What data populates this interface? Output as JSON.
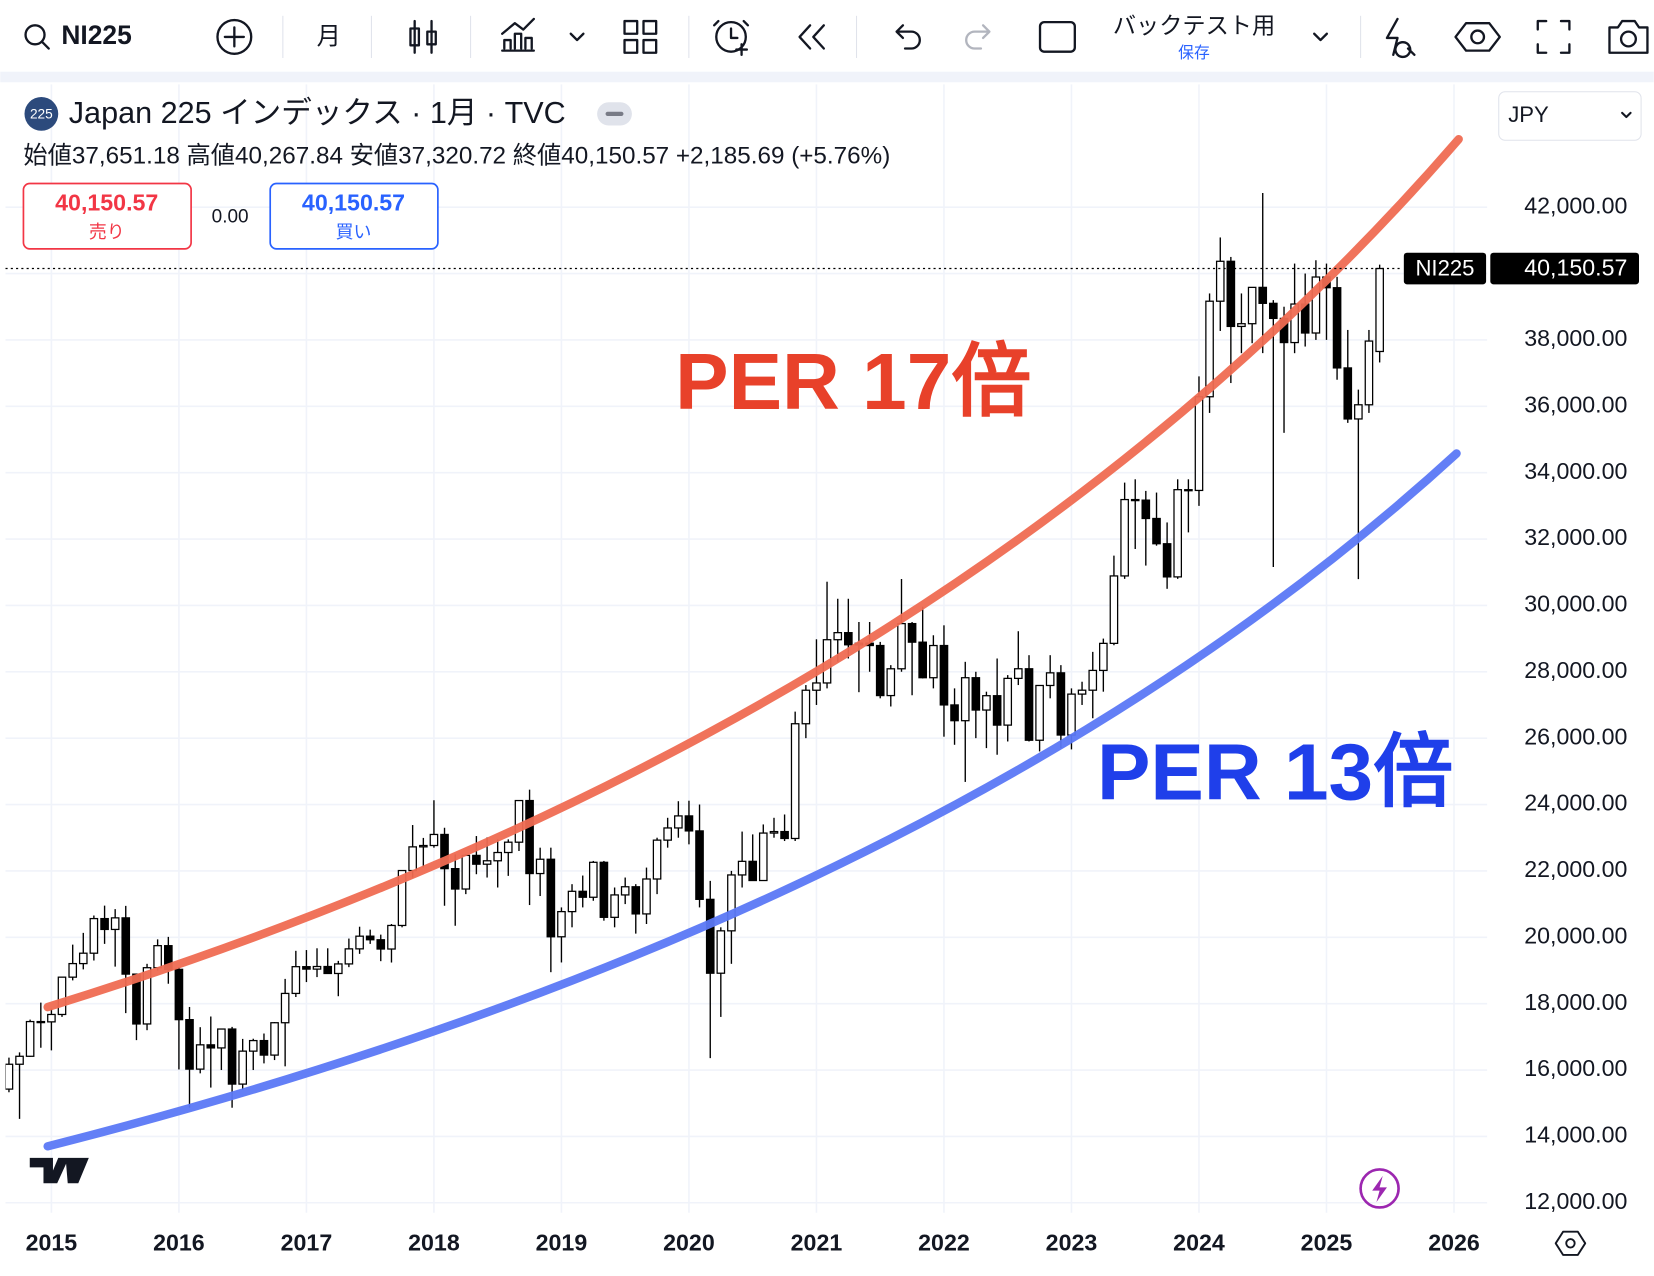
{
  "toolbar": {
    "symbol": "NI225",
    "interval": "月",
    "backtest": "バックテスト用",
    "save": "保存"
  },
  "chart_data": {
    "type": "candlestick",
    "badge": "225",
    "title": "Japan 225 インデックス · 1月 · TVC",
    "legend": "始値37,651.18 高値40,267.84 安値37,320.72 終値40,150.57 +2,185.69 (+5.76%)",
    "trade": {
      "sell_price": "40,150.57",
      "sell": "売り",
      "spread": "0.00",
      "buy_price": "40,150.57",
      "buy": "買い"
    },
    "currency": "JPY",
    "annotations": [
      "PER 17倍",
      "PER 13倍"
    ],
    "up_color": "#ffffff",
    "down_color": "#000000",
    "last_price": {
      "name": "NI225",
      "value": 40150.57,
      "label": "40,150.57"
    },
    "x": [
      2014.667,
      2014.75,
      2014.833,
      2014.917,
      2015,
      2015.083,
      2015.167,
      2015.25,
      2015.333,
      2015.417,
      2015.5,
      2015.583,
      2015.667,
      2015.75,
      2015.833,
      2015.917,
      2016,
      2016.083,
      2016.167,
      2016.25,
      2016.333,
      2016.417,
      2016.5,
      2016.583,
      2016.667,
      2016.75,
      2016.833,
      2016.917,
      2017,
      2017.083,
      2017.167,
      2017.25,
      2017.333,
      2017.417,
      2017.5,
      2017.583,
      2017.667,
      2017.75,
      2017.833,
      2017.917,
      2018,
      2018.083,
      2018.167,
      2018.25,
      2018.333,
      2018.417,
      2018.5,
      2018.583,
      2018.667,
      2018.75,
      2018.833,
      2018.917,
      2019,
      2019.083,
      2019.167,
      2019.25,
      2019.333,
      2019.417,
      2019.5,
      2019.583,
      2019.667,
      2019.75,
      2019.833,
      2019.917,
      2020,
      2020.083,
      2020.167,
      2020.25,
      2020.333,
      2020.417,
      2020.5,
      2020.583,
      2020.667,
      2020.75,
      2020.833,
      2020.917,
      2021,
      2021.083,
      2021.167,
      2021.25,
      2021.333,
      2021.417,
      2021.5,
      2021.583,
      2021.667,
      2021.75,
      2021.833,
      2021.917,
      2022,
      2022.083,
      2022.167,
      2022.25,
      2022.333,
      2022.417,
      2022.5,
      2022.583,
      2022.667,
      2022.75,
      2022.833,
      2022.917,
      2023,
      2023.083,
      2023.167,
      2023.25,
      2023.333,
      2023.417,
      2023.5,
      2023.583,
      2023.667,
      2023.75,
      2023.833,
      2023.917,
      2024,
      2024.083,
      2024.167,
      2024.25,
      2024.333,
      2024.417,
      2024.5,
      2024.583,
      2024.667,
      2024.75,
      2024.833,
      2024.917,
      2025,
      2025.083,
      2025.167,
      2025.25,
      2025.333,
      2025.417
    ],
    "open": [
      15425,
      16174,
      16414,
      17460,
      17451,
      17674,
      18798,
      19207,
      19520,
      20563,
      20236,
      20585,
      18890,
      17388,
      19083,
      19747,
      19034,
      17518,
      16027,
      16759,
      16666,
      17235,
      15576,
      16569,
      16887,
      16450,
      17425,
      18308,
      19114,
      19041,
      19119,
      18909,
      19197,
      19651,
      20033,
      19925,
      19646,
      20356,
      22011,
      22724,
      22765,
      23098,
      22068,
      21454,
      22467,
      22202,
      22305,
      22554,
      22865,
      24120,
      21920,
      22351,
      20015,
      20773,
      21385,
      21206,
      22259,
      20601,
      21276,
      21522,
      20704,
      21756,
      22927,
      23294,
      23657,
      23205,
      21143,
      18917,
      20194,
      21878,
      22288,
      21710,
      23140,
      23185,
      22977,
      26434,
      27444,
      27663,
      28966,
      29179,
      28813,
      28860,
      28791,
      27283,
      28090,
      29452,
      28892,
      27821,
      28791,
      27001,
      26526,
      27821,
      26847,
      27279,
      26393,
      27801,
      28091,
      25937,
      27587,
      27968,
      26094,
      27327,
      27445,
      28041,
      28856,
      30888,
      33189,
      33172,
      32619,
      31858,
      30859,
      33487,
      33464,
      36287,
      39166,
      40369,
      38406,
      38488,
      39583,
      39102,
      38648,
      37920,
      39081,
      38208,
      39895,
      39573,
      37156,
      35618,
      36045,
      37651.18
    ],
    "high": [
      16375,
      16533,
      17520,
      18030,
      17850,
      18800,
      19778,
      20133,
      20655,
      20952,
      20850,
      20946,
      18900,
      19200,
      19937,
      20012,
      19100,
      17900,
      17291,
      17613,
      17251,
      17300,
      16938,
      16943,
      17100,
      17446,
      18746,
      19592,
      19615,
      19668,
      19668,
      19289,
      19961,
      20318,
      20230,
      20080,
      20400,
      22011,
      23382,
      22994,
      24129,
      23300,
      22500,
      22500,
      23050,
      23011,
      22950,
      22950,
      24120,
      24448,
      22700,
      22700,
      20900,
      21600,
      21860,
      22300,
      22300,
      21500,
      21800,
      21600,
      22100,
      23000,
      23600,
      24100,
      24115,
      24000,
      21700,
      20300,
      22000,
      23185,
      23100,
      23400,
      23600,
      23700,
      26800,
      27600,
      28979,
      30714,
      30200,
      30200,
      29500,
      29500,
      28900,
      28200,
      30795,
      29500,
      29960,
      29100,
      29400,
      27500,
      28300,
      28000,
      27400,
      28400,
      27900,
      29222,
      28500,
      27600,
      28500,
      28200,
      27500,
      27700,
      28600,
      29000,
      31500,
      33700,
      33800,
      33450,
      33400,
      32500,
      33800,
      33800,
      36900,
      39400,
      41087,
      40500,
      39400,
      39500,
      42427,
      39200,
      39000,
      40300,
      40000,
      40400,
      40300,
      39900,
      38300,
      36500,
      38300,
      40267.84
    ],
    "low": [
      15330,
      14529,
      16400,
      16672,
      16592,
      17600,
      18700,
      19034,
      19300,
      19800,
      19115,
      17714,
      16901,
      17200,
      19000,
      18600,
      16017,
      14865,
      15900,
      15471,
      16000,
      14864,
      15400,
      16000,
      16200,
      16300,
      16111,
      18200,
      18650,
      18800,
      18900,
      18224,
      19100,
      19500,
      19800,
      19280,
      19239,
      20300,
      21800,
      22100,
      22700,
      20950,
      20347,
      21300,
      21900,
      21800,
      21500,
      21850,
      22600,
      20971,
      21243,
      18948,
      19241,
      20300,
      20900,
      21100,
      20500,
      20300,
      21000,
      20110,
      20400,
      21300,
      22700,
      23000,
      22800,
      20900,
      16358,
      17600,
      19200,
      21500,
      21700,
      21700,
      23000,
      22900,
      22900,
      26000,
      27000,
      27500,
      28300,
      28400,
      27385,
      28000,
      27200,
      26954,
      28000,
      27293,
      27800,
      27500,
      26044,
      25800,
      24681,
      26000,
      25700,
      25500,
      25900,
      27600,
      25900,
      25600,
      27200,
      25700,
      25661,
      27000,
      26600,
      27400,
      28800,
      30800,
      31700,
      31200,
      31800,
      30500,
      30800,
      32200,
      33000,
      35800,
      38270,
      36700,
      37600,
      37900,
      37600,
      31156,
      35200,
      37600,
      37800,
      38000,
      38000,
      36800,
      35500,
      30793,
      35800,
      37320.72
    ],
    "close": [
      16174,
      16414,
      17460,
      17451,
      17674,
      18798,
      19207,
      19520,
      20563,
      20236,
      20585,
      18890,
      17388,
      19083,
      19747,
      19034,
      17518,
      16027,
      16759,
      16666,
      17235,
      15576,
      16569,
      16887,
      16450,
      17425,
      18308,
      19114,
      19041,
      19119,
      18909,
      19197,
      19651,
      20033,
      19925,
      19646,
      20356,
      22011,
      22724,
      22765,
      23098,
      22068,
      21454,
      22467,
      22202,
      22305,
      22554,
      22865,
      24120,
      21920,
      22351,
      20015,
      20773,
      21385,
      21206,
      22259,
      20601,
      21276,
      21522,
      20704,
      21756,
      22927,
      23294,
      23657,
      23205,
      21143,
      18917,
      20194,
      21878,
      22288,
      21710,
      23140,
      23185,
      22977,
      26434,
      27444,
      27663,
      28966,
      29179,
      28813,
      28860,
      28791,
      27283,
      28090,
      29452,
      28892,
      27821,
      28791,
      27001,
      26526,
      27821,
      26847,
      27279,
      26393,
      27801,
      28091,
      25937,
      27587,
      27968,
      26094,
      27327,
      27445,
      28041,
      28856,
      30888,
      33189,
      33172,
      32619,
      31858,
      30859,
      33487,
      33464,
      36287,
      39166,
      40369,
      38406,
      38488,
      39583,
      39102,
      38648,
      37920,
      39081,
      38208,
      39895,
      39573,
      37156,
      35618,
      36045,
      37965,
      40150.57
    ],
    "xlim": [
      2014.64,
      2026.26
    ],
    "xticks": [
      2015,
      2016,
      2017,
      2018,
      2019,
      2020,
      2021,
      2022,
      2023,
      2024,
      2025,
      2026
    ],
    "ylim": [
      11700,
      45700
    ],
    "yticks": [
      {
        "value": 12000,
        "label": "12,000.00"
      },
      {
        "value": 14000,
        "label": "14,000.00"
      },
      {
        "value": 16000,
        "label": "16,000.00"
      },
      {
        "value": 18000,
        "label": "18,000.00"
      },
      {
        "value": 20000,
        "label": "20,000.00"
      },
      {
        "value": 22000,
        "label": "22,000.00"
      },
      {
        "value": 24000,
        "label": "24,000.00"
      },
      {
        "value": 26000,
        "label": "26,000.00"
      },
      {
        "value": 28000,
        "label": "28,000.00"
      },
      {
        "value": 30000,
        "label": "30,000.00"
      },
      {
        "value": 32000,
        "label": "32,000.00"
      },
      {
        "value": 34000,
        "label": "34,000.00"
      },
      {
        "value": 36000,
        "label": "36,000.00"
      },
      {
        "value": 38000,
        "label": "38,000.00"
      },
      {
        "value": 40000,
        "label": "40,000.00"
      },
      {
        "value": 42000,
        "label": "42,000.00"
      }
    ],
    "grid": true
  }
}
